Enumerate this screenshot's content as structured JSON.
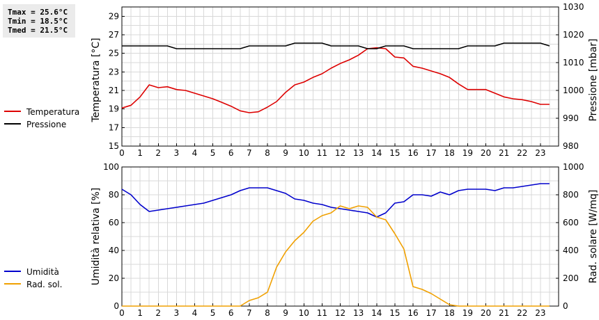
{
  "stats": {
    "tmax": "Tmax = 25.6°C",
    "tmin": "Tmin = 18.5°C",
    "tmed": "Tmed = 21.5°C"
  },
  "chart_data": [
    {
      "type": "line",
      "ylabel": "Temperatura [°C]",
      "y2label": "Pressione [mbar]",
      "xlim": [
        0,
        24
      ],
      "ylim": [
        15,
        30
      ],
      "y2lim": [
        980,
        1030
      ],
      "x_ticks": [
        "0",
        "1",
        "2",
        "3",
        "4",
        "5",
        "6",
        "7",
        "8",
        "9",
        "10",
        "11",
        "12",
        "13",
        "14",
        "15",
        "16",
        "17",
        "18",
        "19",
        "20",
        "21",
        "22",
        "23"
      ],
      "y_ticks": [
        "15",
        "17",
        "19",
        "21",
        "23",
        "25",
        "27",
        "29"
      ],
      "y2_ticks": [
        "980",
        "990",
        "1000",
        "1010",
        "1020",
        "1030"
      ],
      "grid": true,
      "legend_position": "left",
      "series": [
        {
          "name": "Temperatura",
          "axis": "left",
          "color": "#dd0000",
          "x": [
            0,
            0.5,
            1,
            1.5,
            2,
            2.5,
            3,
            3.5,
            4,
            4.5,
            5,
            5.5,
            6,
            6.5,
            7,
            7.5,
            8,
            8.5,
            9,
            9.5,
            10,
            10.5,
            11,
            11.5,
            12,
            12.5,
            13,
            13.5,
            14,
            14.5,
            15,
            15.5,
            16,
            16.5,
            17,
            17.5,
            18,
            18.5,
            19,
            19.5,
            20,
            20.5,
            21,
            21.5,
            22,
            22.5,
            23,
            23.5
          ],
          "y": [
            19.1,
            19.4,
            20.3,
            21.6,
            21.3,
            21.4,
            21.1,
            21.0,
            20.7,
            20.4,
            20.1,
            19.7,
            19.3,
            18.8,
            18.6,
            18.7,
            19.2,
            19.8,
            20.8,
            21.6,
            21.9,
            22.4,
            22.8,
            23.4,
            23.9,
            24.3,
            24.8,
            25.5,
            25.6,
            25.5,
            24.6,
            24.5,
            23.6,
            23.4,
            23.1,
            22.8,
            22.4,
            21.7,
            21.1,
            21.1,
            21.1,
            20.7,
            20.3,
            20.1,
            20.0,
            19.8,
            19.5,
            19.5
          ]
        },
        {
          "name": "Pressione",
          "axis": "right",
          "color": "#000000",
          "x": [
            0,
            0.5,
            1,
            1.5,
            2,
            2.5,
            3,
            3.5,
            4,
            4.5,
            5,
            5.5,
            6,
            6.5,
            7,
            7.5,
            8,
            8.5,
            9,
            9.5,
            10,
            10.5,
            11,
            11.5,
            12,
            12.5,
            13,
            13.5,
            14,
            14.5,
            15,
            15.5,
            16,
            16.5,
            17,
            17.5,
            18,
            18.5,
            19,
            19.5,
            20,
            20.5,
            21,
            21.5,
            22,
            22.5,
            23,
            23.5
          ],
          "y": [
            1016,
            1016,
            1016,
            1016,
            1016,
            1016,
            1015,
            1015,
            1015,
            1015,
            1015,
            1015,
            1015,
            1015,
            1016,
            1016,
            1016,
            1016,
            1016,
            1017,
            1017,
            1017,
            1017,
            1016,
            1016,
            1016,
            1016,
            1015,
            1015,
            1016,
            1016,
            1016,
            1015,
            1015,
            1015,
            1015,
            1015,
            1015,
            1016,
            1016,
            1016,
            1016,
            1017,
            1017,
            1017,
            1017,
            1017,
            1016
          ]
        }
      ]
    },
    {
      "type": "line",
      "ylabel": "Umidità relativa [%]",
      "y2label": "Rad. solare [W/mq]",
      "xlim": [
        0,
        24
      ],
      "ylim": [
        0,
        100
      ],
      "y2lim": [
        0,
        1000
      ],
      "x_ticks": [
        "0",
        "1",
        "2",
        "3",
        "4",
        "5",
        "6",
        "7",
        "8",
        "9",
        "10",
        "11",
        "12",
        "13",
        "14",
        "15",
        "16",
        "17",
        "18",
        "19",
        "20",
        "21",
        "22",
        "23"
      ],
      "y_ticks": [
        "0",
        "20",
        "40",
        "60",
        "80",
        "100"
      ],
      "y2_ticks": [
        "0",
        "200",
        "400",
        "600",
        "800",
        "1000"
      ],
      "grid": true,
      "legend_position": "left",
      "series": [
        {
          "name": "Umidità",
          "axis": "left",
          "color": "#0000cc",
          "x": [
            0,
            0.5,
            1,
            1.5,
            2,
            2.5,
            3,
            3.5,
            4,
            4.5,
            5,
            5.5,
            6,
            6.5,
            7,
            7.5,
            8,
            8.5,
            9,
            9.5,
            10,
            10.5,
            11,
            11.5,
            12,
            12.5,
            13,
            13.5,
            14,
            14.5,
            15,
            15.5,
            16,
            16.5,
            17,
            17.5,
            18,
            18.5,
            19,
            19.5,
            20,
            20.5,
            21,
            21.5,
            22,
            22.5,
            23,
            23.5
          ],
          "y": [
            84,
            80,
            73,
            68,
            69,
            70,
            71,
            72,
            73,
            74,
            76,
            78,
            80,
            83,
            85,
            85,
            85,
            83,
            81,
            77,
            76,
            74,
            73,
            71,
            70,
            69,
            68,
            67,
            64,
            67,
            74,
            75,
            80,
            80,
            79,
            82,
            80,
            83,
            84,
            84,
            84,
            83,
            85,
            85,
            86,
            87,
            88,
            88
          ]
        },
        {
          "name": "Rad. sol.",
          "axis": "right",
          "color": "#f0a000",
          "x": [
            0,
            0.5,
            1,
            1.5,
            2,
            2.5,
            3,
            3.5,
            4,
            4.5,
            5,
            5.5,
            6,
            6.5,
            7,
            7.5,
            8,
            8.5,
            9,
            9.5,
            10,
            10.5,
            11,
            11.5,
            12,
            12.5,
            13,
            13.5,
            14,
            14.5,
            15,
            15.5,
            16,
            16.5,
            17,
            17.5,
            18,
            18.5,
            19,
            19.5,
            20,
            20.5,
            21,
            21.5,
            22,
            22.5,
            23,
            23.5
          ],
          "y": [
            0,
            0,
            0,
            0,
            0,
            0,
            0,
            0,
            0,
            0,
            0,
            0,
            0,
            0,
            40,
            60,
            100,
            280,
            390,
            470,
            530,
            610,
            650,
            670,
            720,
            700,
            720,
            710,
            640,
            620,
            520,
            410,
            140,
            120,
            90,
            50,
            10,
            0,
            0,
            0,
            0,
            0,
            0,
            0,
            0,
            0,
            0,
            0
          ]
        }
      ]
    }
  ]
}
